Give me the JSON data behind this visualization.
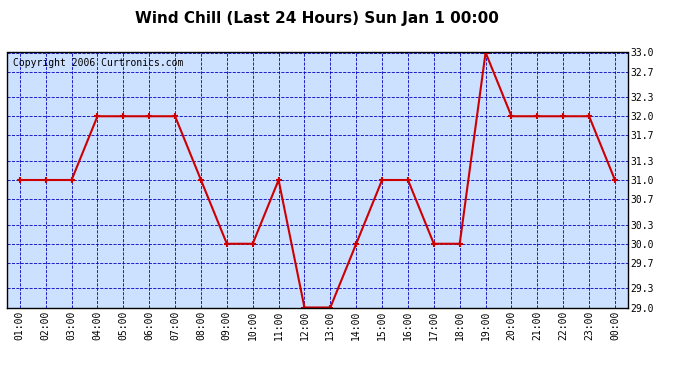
{
  "title": "Wind Chill (Last 24 Hours) Sun Jan 1 00:00",
  "copyright": "Copyright 2006 Curtronics.com",
  "hours": [
    "01:00",
    "02:00",
    "03:00",
    "04:00",
    "05:00",
    "06:00",
    "07:00",
    "08:00",
    "09:00",
    "10:00",
    "11:00",
    "12:00",
    "13:00",
    "14:00",
    "15:00",
    "16:00",
    "17:00",
    "18:00",
    "19:00",
    "20:00",
    "21:00",
    "22:00",
    "23:00",
    "00:00"
  ],
  "values": [
    31.0,
    31.0,
    31.0,
    32.0,
    32.0,
    32.0,
    32.0,
    31.0,
    30.0,
    30.0,
    31.0,
    29.0,
    29.0,
    30.0,
    31.0,
    31.0,
    30.0,
    30.0,
    33.0,
    32.0,
    32.0,
    32.0,
    32.0,
    31.0
  ],
  "ylim": [
    29.0,
    33.0
  ],
  "yticks": [
    29.0,
    29.3,
    29.7,
    30.0,
    30.3,
    30.7,
    31.0,
    31.3,
    31.7,
    32.0,
    32.3,
    32.7,
    33.0
  ],
  "line_color": "#cc0000",
  "marker_color": "#cc0000",
  "bg_color": "#cce0ff",
  "plot_bg_color": "#cce0ff",
  "grid_color": "#0000bb",
  "title_fontsize": 11,
  "copyright_fontsize": 7
}
